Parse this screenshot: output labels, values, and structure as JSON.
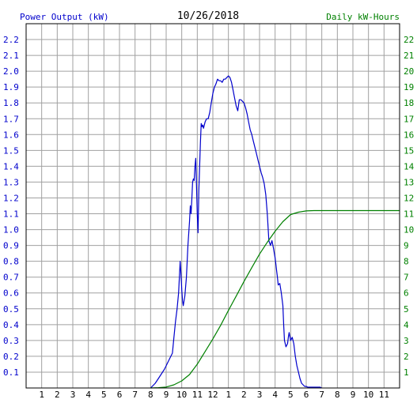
{
  "chart_data": {
    "type": "line",
    "title": "10/26/2018",
    "y_left_label": "Power Output (kW)",
    "y_right_label": "Daily kW-Hours",
    "x_ticks": [
      "1",
      "2",
      "3",
      "4",
      "5",
      "6",
      "7",
      "8",
      "9",
      "10",
      "11",
      "12",
      "1",
      "2",
      "3",
      "4",
      "5",
      "6",
      "7",
      "8",
      "9",
      "10",
      "11"
    ],
    "y_left_ticks": [
      "0.1",
      "0.2",
      "0.3",
      "0.4",
      "0.5",
      "0.6",
      "0.7",
      "0.8",
      "0.9",
      "1.0",
      "1.1",
      "1.2",
      "1.3",
      "1.4",
      "1.5",
      "1.6",
      "1.7",
      "1.8",
      "1.9",
      "2.0",
      "2.1",
      "2.2"
    ],
    "y_right_ticks": [
      "1",
      "2",
      "3",
      "4",
      "5",
      "6",
      "7",
      "8",
      "9",
      "10",
      "11",
      "12",
      "13",
      "14",
      "15",
      "16",
      "17",
      "18",
      "19",
      "20",
      "21",
      "22"
    ],
    "xlim": [
      0,
      24
    ],
    "ylim_left": [
      0,
      2.3
    ],
    "ylim_right": [
      0,
      23
    ],
    "grid": true,
    "colors": {
      "power": "#0000cc",
      "energy": "#008000",
      "left_axis_text": "#0000cc",
      "right_axis_text": "#008000",
      "grid": "#a0a0a0"
    },
    "series": [
      {
        "name": "Power Output (kW)",
        "axis": "left",
        "x": [
          8.0,
          8.1,
          8.3,
          8.5,
          8.7,
          8.9,
          9.0,
          9.2,
          9.4,
          9.5,
          9.6,
          9.7,
          9.8,
          9.85,
          9.9,
          9.95,
          10.0,
          10.05,
          10.1,
          10.2,
          10.3,
          10.4,
          10.5,
          10.55,
          10.6,
          10.65,
          10.7,
          10.75,
          10.8,
          10.85,
          10.9,
          11.0,
          11.05,
          11.1,
          11.2,
          11.25,
          11.3,
          11.35,
          11.4,
          11.5,
          11.6,
          11.7,
          11.8,
          11.9,
          12.0,
          12.1,
          12.2,
          12.3,
          12.4,
          12.5,
          12.6,
          12.7,
          12.8,
          12.9,
          13.0,
          13.1,
          13.2,
          13.3,
          13.4,
          13.5,
          13.6,
          13.7,
          13.8,
          13.9,
          14.0,
          14.1,
          14.2,
          14.3,
          14.4,
          14.5,
          14.6,
          14.7,
          14.8,
          14.9,
          15.0,
          15.1,
          15.2,
          15.3,
          15.4,
          15.5,
          15.6,
          15.7,
          15.8,
          15.9,
          16.0,
          16.05,
          16.1,
          16.15,
          16.2,
          16.3,
          16.4,
          16.5,
          16.55,
          16.6,
          16.7,
          16.8,
          16.85,
          16.9,
          17.0,
          17.1,
          17.2,
          17.3,
          17.4,
          17.5,
          17.6,
          17.7,
          17.8,
          17.9,
          18.0,
          18.1,
          18.3,
          18.6,
          18.9,
          19.0
        ],
        "values": [
          0.0,
          0.01,
          0.03,
          0.06,
          0.09,
          0.12,
          0.14,
          0.18,
          0.22,
          0.32,
          0.42,
          0.5,
          0.6,
          0.7,
          0.8,
          0.72,
          0.62,
          0.55,
          0.52,
          0.58,
          0.7,
          0.9,
          1.05,
          1.15,
          1.1,
          1.2,
          1.3,
          1.32,
          1.31,
          1.4,
          1.45,
          1.1,
          0.98,
          1.25,
          1.55,
          1.67,
          1.65,
          1.66,
          1.64,
          1.68,
          1.7,
          1.7,
          1.74,
          1.8,
          1.86,
          1.9,
          1.92,
          1.95,
          1.94,
          1.94,
          1.93,
          1.95,
          1.95,
          1.96,
          1.97,
          1.96,
          1.93,
          1.88,
          1.83,
          1.78,
          1.75,
          1.82,
          1.82,
          1.81,
          1.8,
          1.77,
          1.73,
          1.68,
          1.63,
          1.6,
          1.56,
          1.52,
          1.48,
          1.44,
          1.4,
          1.36,
          1.33,
          1.29,
          1.22,
          1.1,
          0.93,
          0.9,
          0.93,
          0.88,
          0.82,
          0.78,
          0.74,
          0.7,
          0.65,
          0.66,
          0.6,
          0.52,
          0.4,
          0.3,
          0.26,
          0.28,
          0.32,
          0.35,
          0.3,
          0.32,
          0.28,
          0.2,
          0.14,
          0.1,
          0.06,
          0.03,
          0.02,
          0.01,
          0.01,
          0.005,
          0.005,
          0.005,
          0.005,
          0.0
        ]
      },
      {
        "name": "Daily kW-Hours",
        "axis": "right",
        "x": [
          8.0,
          8.5,
          9.0,
          9.5,
          10.0,
          10.5,
          11.0,
          11.5,
          12.0,
          12.5,
          13.0,
          13.5,
          14.0,
          14.5,
          15.0,
          15.5,
          16.0,
          16.5,
          17.0,
          17.5,
          18.0,
          18.5,
          19.0,
          20.0,
          21.0,
          22.0,
          23.0,
          24.0
        ],
        "values": [
          0.0,
          0.02,
          0.06,
          0.2,
          0.45,
          0.85,
          1.5,
          2.3,
          3.1,
          3.95,
          4.9,
          5.8,
          6.72,
          7.6,
          8.45,
          9.2,
          9.9,
          10.5,
          10.95,
          11.1,
          11.18,
          11.2,
          11.2,
          11.2,
          11.2,
          11.2,
          11.2,
          11.2
        ]
      }
    ]
  }
}
